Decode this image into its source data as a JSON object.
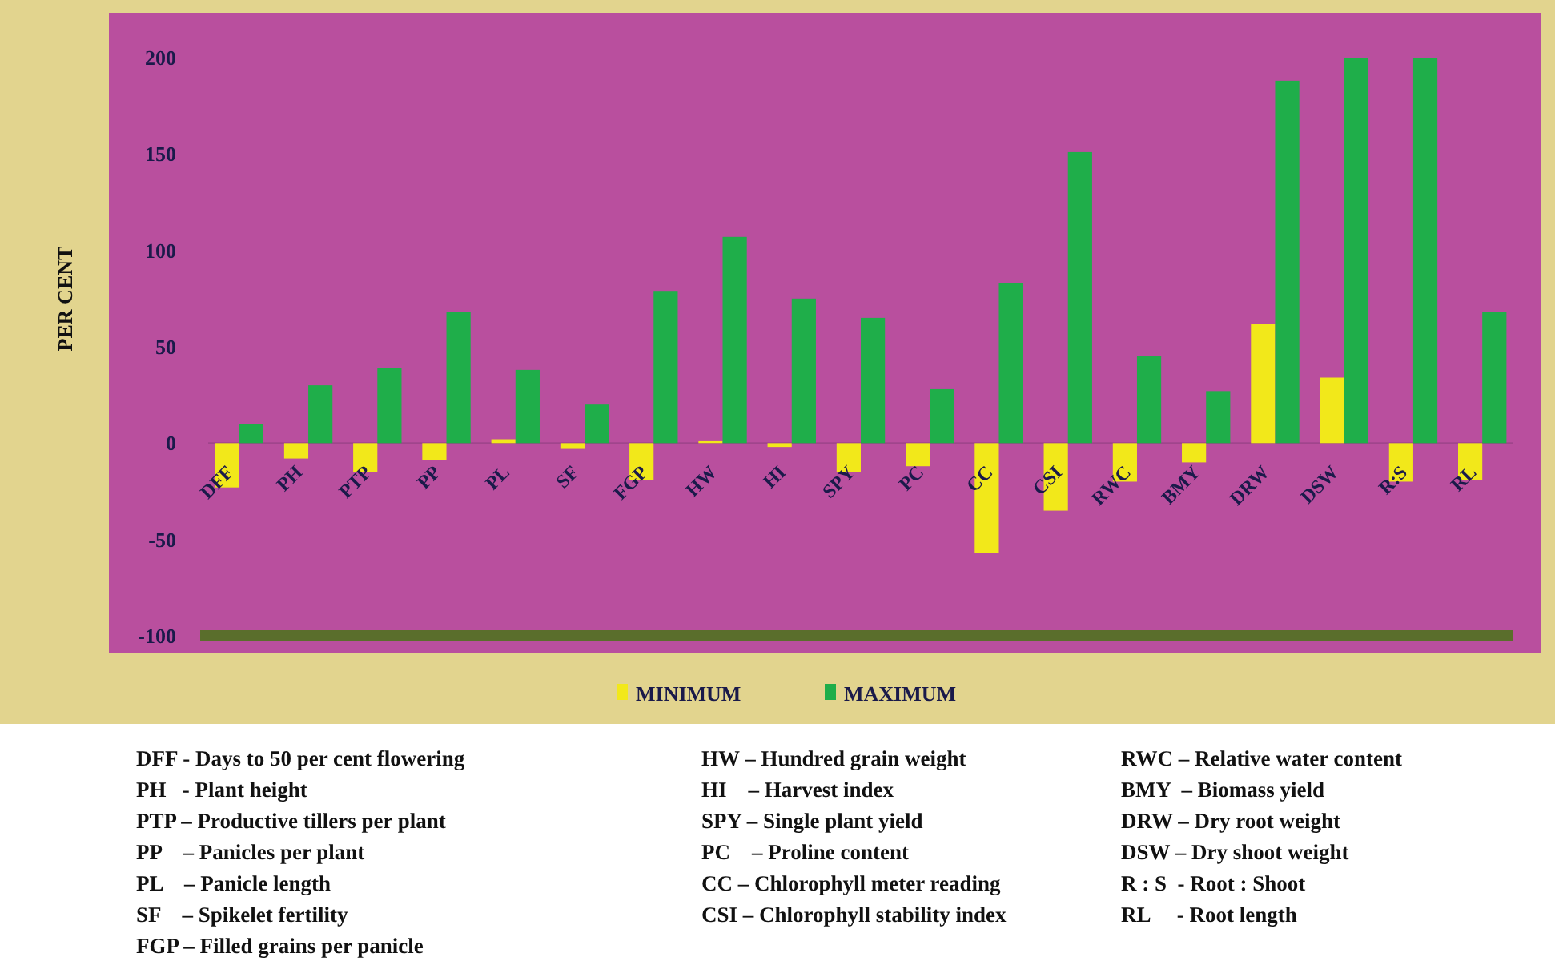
{
  "chart_data": {
    "type": "bar",
    "ylabel": "PER CENT",
    "categories": [
      "DFF",
      "PH",
      "PTP",
      "PP",
      "PL",
      "SF",
      "FGP",
      "HW",
      "HI",
      "SPY",
      "PC",
      "CC",
      "CSI",
      "RWC",
      "BMY",
      "DRW",
      "DSW",
      "R:S",
      "RL"
    ],
    "series": [
      {
        "name": "MINIMUM",
        "color": "#f2e81a",
        "values": [
          -23,
          -8,
          -15,
          -9,
          2,
          -3,
          -19,
          1,
          -2,
          -15,
          -12,
          -57,
          -35,
          -20,
          -10,
          62,
          34,
          -20,
          -19
        ]
      },
      {
        "name": "MAXIMUM",
        "color": "#1fae4a",
        "values": [
          10,
          30,
          39,
          68,
          38,
          20,
          79,
          107,
          75,
          65,
          28,
          83,
          151,
          45,
          27,
          188,
          200,
          200,
          68
        ]
      }
    ],
    "ylim": [
      -100,
      200
    ],
    "yticks": [
      -100,
      -50,
      0,
      50,
      100,
      150,
      200
    ],
    "grid": false,
    "legend": "bottom",
    "annotations": [
      "DFF - Days to 50 per cent flowering",
      "PH   - Plant height",
      "PTP – Productive tillers per plant",
      "PP    – Panicles per plant",
      "PL    – Panicle length",
      "SF    – Spikelet fertility",
      "FGP – Filled grains per panicle",
      "HW – Hundred grain weight",
      "HI    – Harvest index",
      "SPY – Single plant yield",
      "PC    – Proline content",
      "CC – Chlorophyll meter reading",
      "CSI – Chlorophyll stability index",
      "RWC – Relative water content",
      "BMY  – Biomass yield",
      "DRW – Dry root weight",
      "DSW – Dry shoot weight",
      "R : S  - Root : Shoot",
      "RL     - Root length"
    ]
  }
}
